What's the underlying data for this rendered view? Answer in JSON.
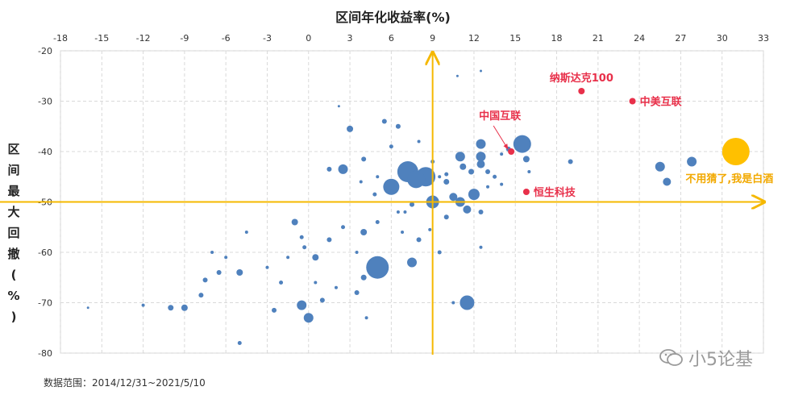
{
  "chart_data": {
    "type": "scatter",
    "title": "区间年化收益率(%)",
    "ylabel": "区间最大回撤(%)",
    "xlim": [
      -18,
      33
    ],
    "ylim": [
      -80,
      -20
    ],
    "x_ticks": [
      -18,
      -15,
      -12,
      -9,
      -6,
      -3,
      0,
      3,
      6,
      9,
      12,
      15,
      18,
      21,
      24,
      27,
      30,
      33
    ],
    "y_ticks": [
      -20,
      -30,
      -40,
      -50,
      -60,
      -70,
      -80
    ],
    "grid": true,
    "reference_lines": {
      "x": 9,
      "y": -50,
      "color": "#F5B800"
    },
    "colors": {
      "funds": "#4F81BD",
      "highlight": "#E8304A",
      "baijiu": "#FFC000",
      "axis_line": "#F5B800"
    },
    "series": [
      {
        "type": "funds",
        "points": [
          {
            "x": 7.2,
            "y": -44.0,
            "r": 13
          },
          {
            "x": 8.5,
            "y": -45.0,
            "r": 12
          },
          {
            "x": 7.8,
            "y": -45.5,
            "r": 11
          },
          {
            "x": 6.0,
            "y": -47.0,
            "r": 10
          },
          {
            "x": 5.0,
            "y": -63.0,
            "r": 14
          },
          {
            "x": 15.5,
            "y": -38.5,
            "r": 11
          },
          {
            "x": 11.5,
            "y": -70.0,
            "r": 9
          },
          {
            "x": 12.0,
            "y": -48.5,
            "r": 7
          },
          {
            "x": 9.0,
            "y": -50.0,
            "r": 8
          },
          {
            "x": 25.5,
            "y": -43.0,
            "r": 6
          },
          {
            "x": 27.8,
            "y": -42.0,
            "r": 6
          },
          {
            "x": 26.0,
            "y": -46.0,
            "r": 5
          },
          {
            "x": 12.5,
            "y": -38.5,
            "r": 6
          },
          {
            "x": 11.0,
            "y": -41.0,
            "r": 6
          },
          {
            "x": 12.5,
            "y": -41.0,
            "r": 6
          },
          {
            "x": 10.5,
            "y": -49.0,
            "r": 5
          },
          {
            "x": 11.0,
            "y": -50.0,
            "r": 6
          },
          {
            "x": 2.5,
            "y": -43.5,
            "r": 6
          },
          {
            "x": -0.5,
            "y": -70.5,
            "r": 6
          },
          {
            "x": 0.0,
            "y": -73.0,
            "r": 6
          },
          {
            "x": 7.5,
            "y": -62.0,
            "r": 6
          },
          {
            "x": 3.0,
            "y": -35.5,
            "r": 4
          },
          {
            "x": -5.0,
            "y": -64.0,
            "r": 4
          },
          {
            "x": 4.0,
            "y": -56.0,
            "r": 4
          },
          {
            "x": 1.5,
            "y": -57.5,
            "r": 3
          },
          {
            "x": 0.5,
            "y": -61.0,
            "r": 4
          },
          {
            "x": -9.0,
            "y": -71.0,
            "r": 4
          },
          {
            "x": -10.0,
            "y": -71.0,
            "r": 3.5
          },
          {
            "x": -1.0,
            "y": -54.0,
            "r": 4
          },
          {
            "x": 11.5,
            "y": -51.5,
            "r": 5
          },
          {
            "x": 12.5,
            "y": -42.5,
            "r": 5
          },
          {
            "x": 15.8,
            "y": -41.5,
            "r": 4
          },
          {
            "x": 11.8,
            "y": -44.0,
            "r": 3.5
          },
          {
            "x": 10.0,
            "y": -46.0,
            "r": 3.5
          },
          {
            "x": 11.2,
            "y": -43.0,
            "r": 4
          },
          {
            "x": -6.5,
            "y": -64.0,
            "r": 3
          },
          {
            "x": -7.5,
            "y": -65.5,
            "r": 3
          },
          {
            "x": -7.8,
            "y": -68.5,
            "r": 3
          },
          {
            "x": -2.5,
            "y": -71.5,
            "r": 3
          },
          {
            "x": 1.0,
            "y": -69.5,
            "r": 3
          },
          {
            "x": 3.5,
            "y": -68.0,
            "r": 3
          },
          {
            "x": 4.0,
            "y": -65.0,
            "r": 3.5
          },
          {
            "x": 6.0,
            "y": -48.0,
            "r": 3
          },
          {
            "x": 10.0,
            "y": -53.0,
            "r": 3
          },
          {
            "x": 13.0,
            "y": -44.0,
            "r": 3
          },
          {
            "x": 14.5,
            "y": -39.5,
            "r": 3
          },
          {
            "x": 19.0,
            "y": -42.0,
            "r": 3
          },
          {
            "x": 5.5,
            "y": -34.0,
            "r": 3
          },
          {
            "x": 6.5,
            "y": -35.0,
            "r": 3
          },
          {
            "x": 4.0,
            "y": -41.5,
            "r": 3
          },
          {
            "x": 1.5,
            "y": -43.5,
            "r": 3
          },
          {
            "x": 2.5,
            "y": -55.0,
            "r": 2.5
          },
          {
            "x": -0.5,
            "y": -57.0,
            "r": 2.5
          },
          {
            "x": 5.0,
            "y": -54.0,
            "r": 2.5
          },
          {
            "x": 7.5,
            "y": -50.5,
            "r": 3
          },
          {
            "x": 8.0,
            "y": -57.5,
            "r": 3
          },
          {
            "x": 12.5,
            "y": -52.0,
            "r": 3
          },
          {
            "x": 13.5,
            "y": -45.0,
            "r": 2.5
          },
          {
            "x": 9.5,
            "y": -60.0,
            "r": 2.5
          },
          {
            "x": 9.0,
            "y": -42.0,
            "r": 2.5
          },
          {
            "x": 6.0,
            "y": -39.0,
            "r": 2.5
          },
          {
            "x": 8.0,
            "y": -38.0,
            "r": 2
          },
          {
            "x": 10.0,
            "y": -44.5,
            "r": 2.5
          },
          {
            "x": 6.5,
            "y": -52.0,
            "r": 2
          },
          {
            "x": 5.0,
            "y": -45.0,
            "r": 2
          },
          {
            "x": -0.3,
            "y": -59.0,
            "r": 2.5
          },
          {
            "x": -3.0,
            "y": -63.0,
            "r": 2
          },
          {
            "x": -4.5,
            "y": -56.0,
            "r": 2
          },
          {
            "x": -6.0,
            "y": -61.0,
            "r": 2
          },
          {
            "x": -12.0,
            "y": -70.5,
            "r": 2
          },
          {
            "x": -16.0,
            "y": -71.0,
            "r": 1.5
          },
          {
            "x": 3.5,
            "y": -60.0,
            "r": 2
          },
          {
            "x": 2.0,
            "y": -67.0,
            "r": 2
          },
          {
            "x": 0.5,
            "y": -66.0,
            "r": 2
          },
          {
            "x": 11.5,
            "y": -69.0,
            "r": 2
          },
          {
            "x": 8.8,
            "y": -55.5,
            "r": 2
          },
          {
            "x": 12.5,
            "y": -59.0,
            "r": 2
          },
          {
            "x": 10.5,
            "y": -70.0,
            "r": 2
          },
          {
            "x": 14.0,
            "y": -46.5,
            "r": 2
          },
          {
            "x": 16.0,
            "y": -44.0,
            "r": 2
          },
          {
            "x": 14.0,
            "y": -40.5,
            "r": 2
          },
          {
            "x": 10.8,
            "y": -25.0,
            "r": 1.5
          },
          {
            "x": 12.5,
            "y": -24.0,
            "r": 1.5
          },
          {
            "x": 3.8,
            "y": -46.0,
            "r": 2
          },
          {
            "x": 4.8,
            "y": -48.5,
            "r": 2.5
          },
          {
            "x": -5.0,
            "y": -78.0,
            "r": 2.5
          },
          {
            "x": -7.0,
            "y": -60.0,
            "r": 2
          },
          {
            "x": -2.0,
            "y": -66.0,
            "r": 2.5
          },
          {
            "x": 2.2,
            "y": -31.0,
            "r": 1.5
          },
          {
            "x": 6.8,
            "y": -56.0,
            "r": 2
          },
          {
            "x": 7.0,
            "y": -52.0,
            "r": 2
          },
          {
            "x": 9.5,
            "y": -45.0,
            "r": 2
          },
          {
            "x": 13.0,
            "y": -47.0,
            "r": 2
          },
          {
            "x": -1.5,
            "y": -61.0,
            "r": 2
          },
          {
            "x": 4.2,
            "y": -73.0,
            "r": 2
          }
        ]
      },
      {
        "type": "highlight",
        "points": [
          {
            "name": "纳斯达克100",
            "x": 19.8,
            "y": -28.0
          },
          {
            "name": "中美互联",
            "x": 23.5,
            "y": -30.0
          },
          {
            "name": "中国互联",
            "x": 14.7,
            "y": -40.0
          },
          {
            "name": "恒生科技",
            "x": 15.8,
            "y": -48.0
          }
        ]
      },
      {
        "type": "baijiu",
        "points": [
          {
            "name": "不用猜了,我是白酒",
            "x": 31.0,
            "y": -40.0
          }
        ]
      }
    ]
  },
  "labels": {
    "source": "数据范围：2014/12/31~2021/5/10",
    "watermark": "小5论基",
    "ylabel_chars": [
      "区",
      "间",
      "最",
      "大",
      "回",
      "撤",
      "(",
      "%",
      ")"
    ]
  }
}
